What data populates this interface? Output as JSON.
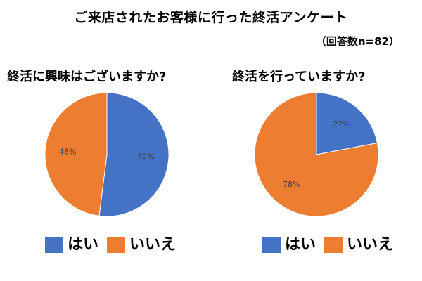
{
  "header": {
    "title": "ご来店されたお客様に行った終活アンケート",
    "respondents": "（回答数n=82）"
  },
  "colors": {
    "yes": "#4472C4",
    "no": "#ED7D31"
  },
  "chart_data": [
    {
      "type": "pie",
      "title": "終活に興味はございますか?",
      "categories": [
        "はい",
        "いいえ"
      ],
      "values": [
        52,
        48
      ],
      "labels": [
        "52%",
        "48%"
      ],
      "legend_placement": "bottom"
    },
    {
      "type": "pie",
      "title": "終活を行っていますか?",
      "categories": [
        "はい",
        "いいえ"
      ],
      "values": [
        22,
        78
      ],
      "labels": [
        "22%",
        "78%"
      ],
      "legend_placement": "bottom"
    }
  ]
}
